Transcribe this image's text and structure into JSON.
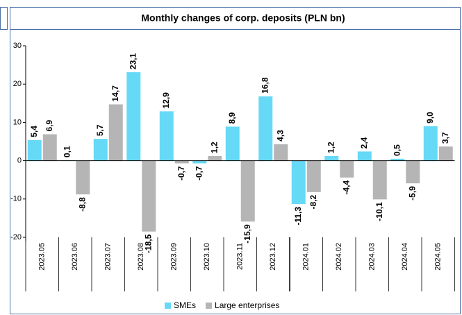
{
  "chart_data": {
    "type": "bar",
    "title": "Monthly changes of corp. deposits (PLN bn)",
    "categories": [
      "2023.05",
      "2023.06",
      "2023.07",
      "2023.08",
      "2023.09",
      "2023.10",
      "2023.11",
      "2023.12",
      "2024.01",
      "2024.02",
      "2024.03",
      "2024.04",
      "2024.05"
    ],
    "series": [
      {
        "name": "SMEs",
        "color": "#66d9f7",
        "values": [
          5.4,
          0.1,
          5.7,
          23.1,
          12.9,
          -0.7,
          8.9,
          16.8,
          -11.3,
          1.2,
          2.4,
          0.5,
          9.0
        ],
        "value_labels": [
          "5,4",
          "0,1",
          "5,7",
          "23,1",
          "12,9",
          "-0,7",
          "8,9",
          "16,8",
          "-11,3",
          "1,2",
          "2,4",
          "0,5",
          "9,0"
        ]
      },
      {
        "name": "Large enterprises",
        "color": "#b5b5b5",
        "values": [
          6.9,
          -8.8,
          14.7,
          -18.5,
          -0.7,
          1.2,
          -15.9,
          4.3,
          -8.2,
          -4.4,
          -10.1,
          -5.9,
          3.7
        ],
        "value_labels": [
          "6,9",
          "-8,8",
          "14,7",
          "-18,5",
          "-0,7",
          "1,2",
          "-15,9",
          "4,3",
          "-8,2",
          "-4,4",
          "-10,1",
          "-5,9",
          "3,7"
        ]
      }
    ],
    "ylim": [
      -20,
      30
    ],
    "yticks": [
      -20,
      -10,
      0,
      10,
      20,
      30
    ],
    "grid": false,
    "legend": "bottom"
  }
}
